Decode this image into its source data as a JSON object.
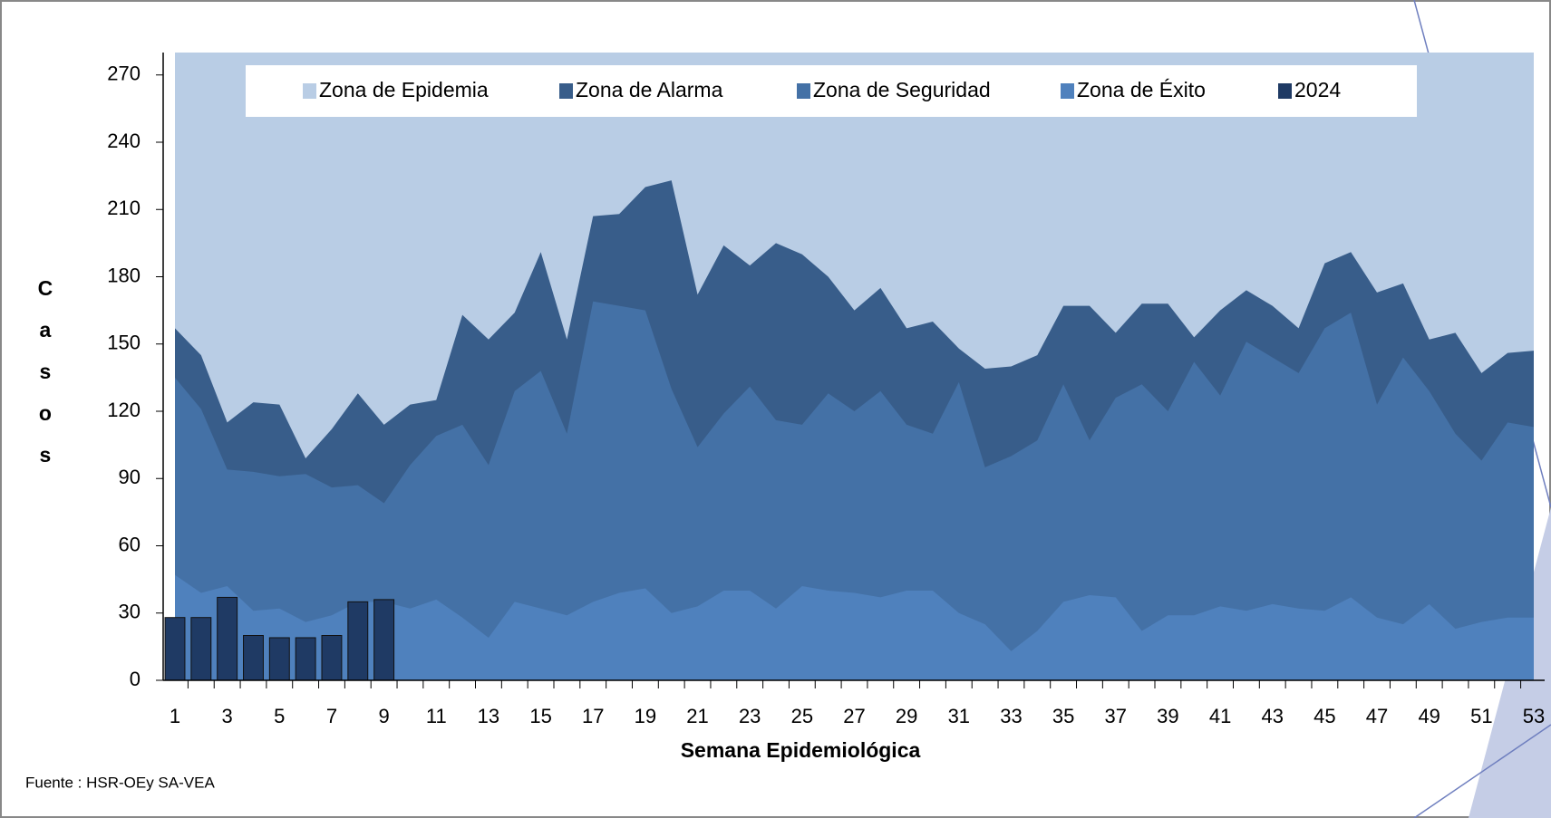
{
  "chart_data": {
    "type": "area",
    "x": [
      1,
      2,
      3,
      4,
      5,
      6,
      7,
      8,
      9,
      10,
      11,
      12,
      13,
      14,
      15,
      16,
      17,
      18,
      19,
      20,
      21,
      22,
      23,
      24,
      25,
      26,
      27,
      28,
      29,
      30,
      31,
      32,
      33,
      34,
      35,
      36,
      37,
      38,
      39,
      40,
      41,
      42,
      43,
      44,
      45,
      46,
      47,
      48,
      49,
      50,
      51,
      52,
      53
    ],
    "xlim": [
      1,
      53
    ],
    "xticks": [
      1,
      3,
      5,
      7,
      9,
      11,
      13,
      15,
      17,
      19,
      21,
      23,
      25,
      27,
      29,
      31,
      33,
      35,
      37,
      39,
      41,
      43,
      45,
      47,
      49,
      51,
      53
    ],
    "ylim": [
      0,
      280
    ],
    "yticks": [
      0,
      30,
      60,
      90,
      120,
      150,
      180,
      210,
      240,
      270
    ],
    "x_label": "Semana Epidemiológica",
    "y_label": "Casos",
    "source": "Fuente : HSR-OEy SA-VEA",
    "legend": "top",
    "series": [
      {
        "name": "Zona de Epidemia",
        "color": "#b9cde5",
        "type": "area",
        "values": [
          280,
          280,
          280,
          280,
          280,
          280,
          280,
          280,
          280,
          280,
          280,
          280,
          280,
          280,
          280,
          280,
          280,
          280,
          280,
          280,
          280,
          280,
          280,
          280,
          280,
          280,
          280,
          280,
          280,
          280,
          280,
          280,
          280,
          280,
          280,
          280,
          280,
          280,
          280,
          280,
          280,
          280,
          280,
          280,
          280,
          280,
          280,
          280,
          280,
          280,
          280,
          280,
          280
        ]
      },
      {
        "name": "Zona de Alarma",
        "color": "#385d8a",
        "type": "area",
        "values": [
          157,
          145,
          115,
          124,
          123,
          99,
          112,
          128,
          114,
          123,
          125,
          163,
          152,
          164,
          191,
          152,
          207,
          208,
          220,
          223,
          172,
          194,
          185,
          195,
          190,
          180,
          165,
          175,
          157,
          160,
          148,
          139,
          140,
          145,
          167,
          167,
          155,
          168,
          168,
          153,
          165,
          174,
          167,
          157,
          186,
          191,
          173,
          177,
          152,
          155,
          137,
          146,
          147
        ]
      },
      {
        "name": "Zona de Seguridad",
        "color": "#4471a6",
        "type": "area",
        "values": [
          135,
          121,
          94,
          93,
          91,
          92,
          86,
          87,
          79,
          96,
          109,
          114,
          96,
          129,
          138,
          110,
          169,
          167,
          165,
          130,
          104,
          119,
          131,
          116,
          114,
          128,
          120,
          129,
          114,
          110,
          133,
          95,
          100,
          107,
          132,
          107,
          126,
          132,
          120,
          142,
          127,
          151,
          144,
          137,
          157,
          164,
          123,
          144,
          129,
          110,
          98,
          115,
          113
        ]
      },
      {
        "name": "Zona de Éxito",
        "color": "#4f81bd",
        "type": "area",
        "values": [
          47,
          39,
          42,
          31,
          32,
          26,
          29,
          35,
          35,
          32,
          36,
          28,
          19,
          35,
          32,
          29,
          35,
          39,
          41,
          30,
          33,
          40,
          40,
          32,
          42,
          40,
          39,
          37,
          40,
          40,
          30,
          25,
          13,
          22,
          35,
          38,
          37,
          22,
          29,
          29,
          33,
          31,
          34,
          32,
          31,
          37,
          28,
          25,
          34,
          23,
          26,
          28,
          28
        ]
      },
      {
        "name": "2024",
        "color": "#1f3a64",
        "type": "bar",
        "values": [
          28,
          28,
          37,
          20,
          19,
          19,
          20,
          35,
          36,
          null,
          null,
          null,
          null,
          null,
          null,
          null,
          null,
          null,
          null,
          null,
          null,
          null,
          null,
          null,
          null,
          null,
          null,
          null,
          null,
          null,
          null,
          null,
          null,
          null,
          null,
          null,
          null,
          null,
          null,
          null,
          null,
          null,
          null,
          null,
          null,
          null,
          null,
          null,
          null,
          null,
          null,
          null,
          null
        ]
      }
    ]
  }
}
